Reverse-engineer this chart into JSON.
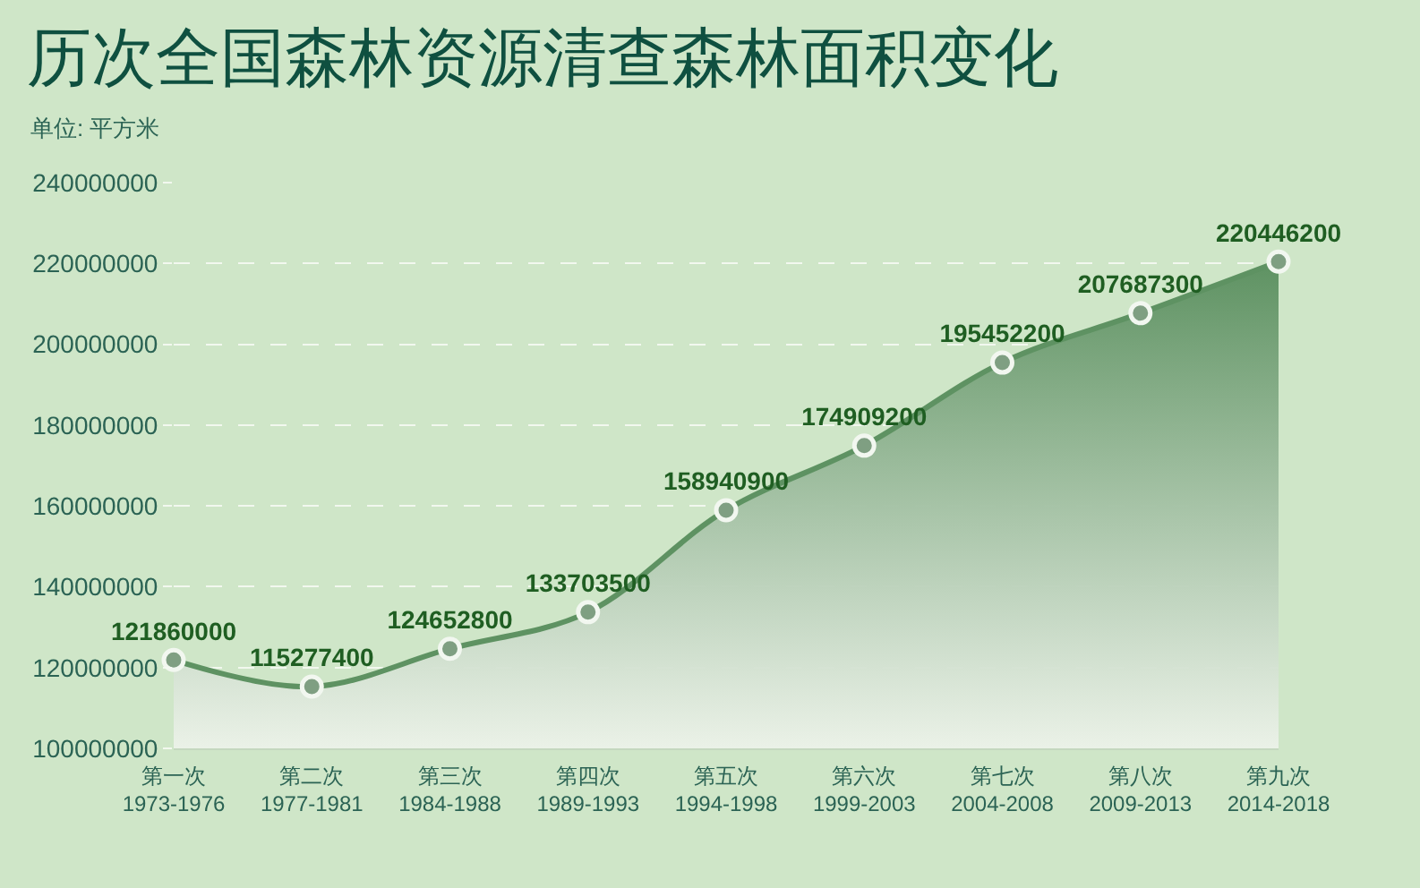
{
  "chart_data": {
    "type": "area",
    "title": "历次全国森林资源清查森林面积变化",
    "ylabel": "单位: 平方米",
    "categories": [
      "第一次\n1973-1976",
      "第二次\n1977-1981",
      "第三次\n1984-1988",
      "第四次\n1989-1993",
      "第五次\n1994-1998",
      "第六次\n1999-2003",
      "第七次\n2004-2008",
      "第八次\n2009-2013",
      "第九次\n2014-2018"
    ],
    "values": [
      121860000,
      115277400,
      124652800,
      133703500,
      158940900,
      174909200,
      195452200,
      207687300,
      220446200
    ],
    "color": "#5e9262",
    "ylim": [
      100000000,
      240000000
    ],
    "yticks": [
      100000000,
      120000000,
      140000000,
      160000000,
      180000000,
      200000000,
      220000000,
      240000000
    ],
    "grid": "y",
    "marker": "circle",
    "data_labels": true
  }
}
